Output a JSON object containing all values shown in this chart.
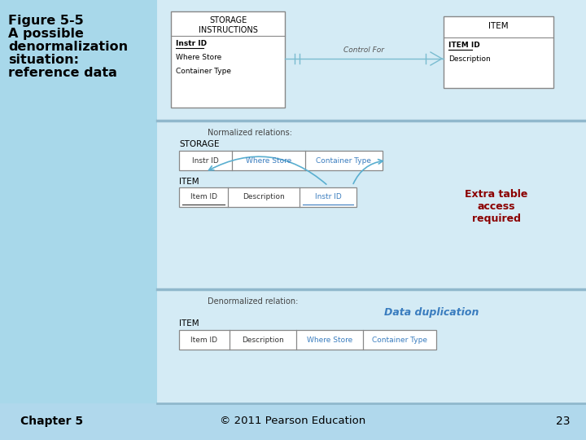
{
  "bg_gradient_top": "#ADD8E6",
  "bg_gradient_bot": "#87CEEB",
  "left_panel_color": "#87CEEB",
  "main_panel_color": "#D8EEF6",
  "white": "#FFFFFF",
  "title_text_lines": [
    "Figure 5-5",
    "A possible",
    "denormalization",
    "situation:",
    "reference data"
  ],
  "title_color": "#000000",
  "title_fontsize": 11.5,
  "box1_title": "STORAGE\nINSTRUCTIONS",
  "box1_fields": [
    "Instr ID",
    "Where Store",
    "Container Type"
  ],
  "box1_bold": [
    true,
    false,
    false
  ],
  "box1_underline": [
    true,
    false,
    false
  ],
  "box2_title": "ITEM",
  "box2_fields": [
    "ITEM ID",
    "Description"
  ],
  "box2_bold": [
    true,
    false
  ],
  "box2_underline": [
    true,
    false
  ],
  "relation_label": "Control For",
  "normalized_label": "Normalized relations:",
  "storage_label": "STORAGE",
  "storage_cols": [
    "Instr ID",
    "Where Store",
    "Container Type"
  ],
  "storage_col_colors": [
    "#333333",
    "#3A7DBF",
    "#3A7DBF"
  ],
  "item_label": "ITEM",
  "item_cols": [
    "Item ID",
    "Description",
    "Instr ID"
  ],
  "item_col_colors": [
    "#333333",
    "#333333",
    "#3A7DBF"
  ],
  "item_col_underline": [
    true,
    false,
    true
  ],
  "extra_table_text": "Extra table\naccess\nrequired",
  "extra_table_color": "#8B0000",
  "denorm_label": "Denormalized relation:",
  "denorm_item_label": "ITEM",
  "denorm_cols": [
    "Item ID",
    "Description",
    "Where Store",
    "Container Type"
  ],
  "denorm_col_colors": [
    "#333333",
    "#333333",
    "#3A7DBF",
    "#3A7DBF"
  ],
  "denorm_col_underline": [
    false,
    false,
    false,
    false
  ],
  "data_dup_text": "Data duplication",
  "data_dup_color": "#3A7DBF",
  "chapter_text": "Chapter 5",
  "copyright_text": "© 2011 Pearson Education",
  "page_num": "23",
  "separator_color": "#A0C8DC",
  "box_outline_color": "#888888",
  "table_outline_color": "#888888",
  "arrow_color": "#5AAFD0",
  "rel_line_color": "#7ABCD0"
}
